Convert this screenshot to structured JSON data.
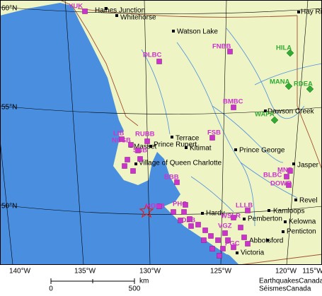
{
  "map": {
    "lat_labels": [
      "60°N",
      "55°N",
      "50°N"
    ],
    "lon_labels": [
      "140°W",
      "135°W",
      "130°W",
      "125°W",
      "120°W",
      "115°W"
    ],
    "cities": [
      "Haines Junction",
      "Whitehorse",
      "Hay River",
      "Watson Lake",
      "Dawson Creek",
      "Terrace",
      "Prince Rupert",
      "Kitimat",
      "Masset",
      "Village of Queen Charlotte",
      "Prince George",
      "Jasper",
      "Revel",
      "Kamloops",
      "Pemberton",
      "Kelowna",
      "Penticton",
      "Hardy",
      "Abbotsford",
      "Victoria"
    ],
    "stations": [
      "YUK",
      "DLBC",
      "FNBB",
      "BMBC",
      "FSB",
      "RUBB",
      "LIB",
      "NCSB",
      "SNB",
      "HOLB",
      "BBB",
      "MNB",
      "BLBC",
      "DOWB",
      "LLLB",
      "WSLR",
      "PHC",
      "VGZ",
      "PGC",
      "OZB"
    ],
    "regional_stations": [
      "HILA",
      "MANA",
      "RDEA",
      "WAPA"
    ],
    "scale_bar": {
      "start": 0,
      "end": 500,
      "unit": "km"
    },
    "credits": [
      "EarthquakesCanada",
      "SéismesCanada"
    ]
  }
}
